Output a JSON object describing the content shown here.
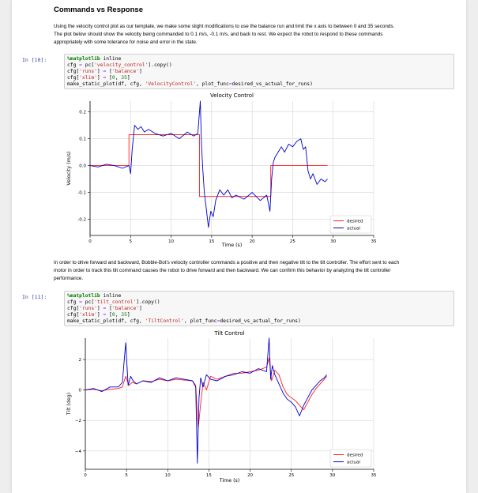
{
  "section1": {
    "heading": "Commands vs Response",
    "para_lines": [
      "Using the velocity control plot as our template, we make some slight modifications to use the balance run and limit the x axis to between 0 and 35 seconds.",
      "The plot below should show the velocity being commanded to 0.1 m/s, -0.1 m/s, and back to rest. We expect the robot to respond to these commands",
      "appropriately with some tolerance for noise and error in the state."
    ]
  },
  "cell1": {
    "prompt": "In [10]:",
    "lines": [
      [
        {
          "t": "%matplotlib",
          "c": "kw"
        },
        {
          "t": " inline",
          "c": ""
        }
      ],
      [
        {
          "t": "cfg ",
          "c": ""
        },
        {
          "t": "=",
          "c": "op"
        },
        {
          "t": " pc[",
          "c": ""
        },
        {
          "t": "'velocity_control'",
          "c": "str"
        },
        {
          "t": "].copy()",
          "c": ""
        }
      ],
      [
        {
          "t": "cfg[",
          "c": ""
        },
        {
          "t": "'runs'",
          "c": "str"
        },
        {
          "t": "] ",
          "c": ""
        },
        {
          "t": "=",
          "c": "op"
        },
        {
          "t": " [",
          "c": ""
        },
        {
          "t": "'balance'",
          "c": "str"
        },
        {
          "t": "]",
          "c": ""
        }
      ],
      [
        {
          "t": "cfg[",
          "c": ""
        },
        {
          "t": "'xlim'",
          "c": "str"
        },
        {
          "t": "] ",
          "c": ""
        },
        {
          "t": "=",
          "c": "op"
        },
        {
          "t": " [",
          "c": ""
        },
        {
          "t": "0",
          "c": "num"
        },
        {
          "t": ", ",
          "c": ""
        },
        {
          "t": "35",
          "c": "num"
        },
        {
          "t": "]",
          "c": ""
        }
      ],
      [
        {
          "t": "make_static_plot(df, cfg, ",
          "c": ""
        },
        {
          "t": "'VelocityControl'",
          "c": "str"
        },
        {
          "t": ", plot_func",
          "c": ""
        },
        {
          "t": "=",
          "c": "op"
        },
        {
          "t": "desired_vs_actual_for_runs)",
          "c": ""
        }
      ]
    ]
  },
  "section2": {
    "para_lines": [
      "In order to drive forward and backward, Bobble-Bot's velocity controller commands a positive and then negative tilt to the tilt controller. The effort sent to each",
      "motor in order to track this tilt command causes the robot to drive forward and then backward. We can confirm this behavior by analyzing the tilt controller",
      "performance."
    ]
  },
  "cell2": {
    "prompt": "In [11]:",
    "lines": [
      [
        {
          "t": "%matplotlib",
          "c": "kw"
        },
        {
          "t": " inline",
          "c": ""
        }
      ],
      [
        {
          "t": "cfg ",
          "c": ""
        },
        {
          "t": "=",
          "c": "op"
        },
        {
          "t": " pc[",
          "c": ""
        },
        {
          "t": "'tilt_control'",
          "c": "str"
        },
        {
          "t": "].copy()",
          "c": ""
        }
      ],
      [
        {
          "t": "cfg[",
          "c": ""
        },
        {
          "t": "'runs'",
          "c": "str"
        },
        {
          "t": "] ",
          "c": ""
        },
        {
          "t": "=",
          "c": "op"
        },
        {
          "t": " [",
          "c": ""
        },
        {
          "t": "'balance'",
          "c": "str"
        },
        {
          "t": "]",
          "c": ""
        }
      ],
      [
        {
          "t": "cfg[",
          "c": ""
        },
        {
          "t": "'xlim'",
          "c": "str"
        },
        {
          "t": "] ",
          "c": ""
        },
        {
          "t": "=",
          "c": "op"
        },
        {
          "t": " [",
          "c": ""
        },
        {
          "t": "0",
          "c": "num"
        },
        {
          "t": ", ",
          "c": ""
        },
        {
          "t": "35",
          "c": "num"
        },
        {
          "t": "]",
          "c": ""
        }
      ],
      [
        {
          "t": "make_static_plot(df, cfg, ",
          "c": ""
        },
        {
          "t": "'TiltControl'",
          "c": "str"
        },
        {
          "t": ", plot_func",
          "c": ""
        },
        {
          "t": "=",
          "c": "op"
        },
        {
          "t": "desired_vs_actual_for_runs)",
          "c": ""
        }
      ]
    ]
  },
  "colors": {
    "desired": "#ff2020",
    "actual": "#0000cc",
    "prompt": "#303f9f"
  },
  "chart_data": [
    {
      "type": "line",
      "title": "Velocity Control",
      "xlabel": "Time (s)",
      "ylabel": "Velocity (m/s)",
      "xlim": [
        0,
        35
      ],
      "ylim": [
        -0.26,
        0.24
      ],
      "xticks": [
        0,
        5,
        10,
        15,
        20,
        25,
        30,
        35
      ],
      "yticks": [
        -0.2,
        -0.1,
        0.0,
        0.1,
        0.2
      ],
      "ytick_labels": [
        "-0.2",
        "-0.1",
        "0.0",
        "0.1",
        "0.2"
      ],
      "grid": true,
      "legend_position": "lower-right",
      "series": [
        {
          "name": "desired",
          "x": [
            0,
            4.8,
            4.8,
            13.5,
            13.5,
            22.3,
            22.3,
            29.3
          ],
          "y": [
            0,
            0,
            0.115,
            0.115,
            -0.115,
            -0.115,
            0,
            0
          ]
        },
        {
          "name": "actual",
          "x": [
            0,
            1,
            2,
            3,
            4,
            4.8,
            5.0,
            5.2,
            5.5,
            5.9,
            6.3,
            6.7,
            7.2,
            8,
            9,
            10,
            11,
            12,
            12.8,
            13.3,
            13.6,
            13.75,
            13.9,
            14.1,
            14.3,
            14.6,
            14.9,
            15.2,
            15.5,
            16,
            16.5,
            17,
            17.5,
            18,
            19,
            20,
            21,
            21.8,
            22.2,
            22.4,
            22.6,
            22.8,
            23.2,
            23.6,
            24,
            24.5,
            25,
            25.5,
            26,
            26.3,
            26.6,
            26.9,
            27.2,
            27.5,
            28,
            28.5,
            29,
            29.3
          ],
          "y": [
            0,
            -0.005,
            0.005,
            0,
            -0.01,
            0.0,
            -0.03,
            0.06,
            0.15,
            0.135,
            0.145,
            0.125,
            0.135,
            0.12,
            0.11,
            0.12,
            0.1,
            0.125,
            0.11,
            0.12,
            0.24,
            0.08,
            -0.01,
            -0.1,
            -0.15,
            -0.23,
            -0.17,
            -0.19,
            -0.13,
            -0.09,
            -0.11,
            -0.09,
            -0.12,
            -0.11,
            -0.125,
            -0.1,
            -0.13,
            -0.11,
            -0.17,
            -0.05,
            0.01,
            0.03,
            0.05,
            0.07,
            0.05,
            0.08,
            0.07,
            0.09,
            0.1,
            0.06,
            0.07,
            -0.02,
            -0.05,
            -0.03,
            -0.07,
            -0.05,
            -0.06,
            -0.05
          ]
        }
      ]
    },
    {
      "type": "line",
      "title": "Tilt Control",
      "xlabel": "Time (s)",
      "ylabel": "Tilt (deg)",
      "xlim": [
        0,
        35
      ],
      "ylim": [
        -5.2,
        3.4
      ],
      "xticks": [
        0,
        5,
        10,
        15,
        20,
        25,
        30,
        35
      ],
      "yticks": [
        -4,
        -2,
        0,
        2
      ],
      "ytick_labels": [
        "−4",
        "−2",
        "0",
        "2"
      ],
      "grid": true,
      "legend_position": "lower-right",
      "series": [
        {
          "name": "desired",
          "x": [
            0,
            1,
            2,
            3,
            4,
            4.5,
            4.9,
            5.3,
            5.7,
            6.2,
            7,
            8,
            9,
            10,
            11,
            12,
            13,
            13.4,
            13.7,
            14.0,
            14.3,
            14.7,
            15.2,
            16,
            17,
            18,
            19,
            20,
            21,
            22,
            22.3,
            22.6,
            23,
            23.5,
            24,
            24.5,
            25,
            25.5,
            26,
            26.5,
            27,
            27.5,
            28,
            28.5,
            29,
            29.3
          ],
          "y": [
            0,
            0.05,
            -0.05,
            0.05,
            0.1,
            0.2,
            0.9,
            0.3,
            0.5,
            0.4,
            0.6,
            0.55,
            0.7,
            0.6,
            0.7,
            0.65,
            0.6,
            0.3,
            -2.5,
            -0.9,
            0.5,
            0.0,
            0.9,
            0.7,
            0.9,
            1.1,
            1.1,
            1.2,
            1.3,
            1.5,
            2.1,
            0.6,
            1.3,
            1.0,
            0.2,
            -0.3,
            -0.5,
            -0.7,
            -1.0,
            -1.3,
            -0.8,
            -0.3,
            0.1,
            0.4,
            0.7,
            0.9
          ]
        },
        {
          "name": "actual",
          "x": [
            0,
            1,
            2,
            3,
            4,
            4.5,
            4.9,
            5.2,
            5.5,
            5.8,
            6.2,
            7,
            8,
            9,
            10,
            11,
            12,
            13,
            13.4,
            13.6,
            13.8,
            14.0,
            14.3,
            14.7,
            15.2,
            16,
            17,
            18,
            19,
            20,
            21,
            22,
            22.3,
            22.5,
            22.7,
            23,
            23.5,
            24,
            24.5,
            25,
            25.5,
            26,
            26.5,
            27,
            27.5,
            28,
            28.5,
            29,
            29.3
          ],
          "y": [
            0,
            0.1,
            -0.1,
            0.2,
            0.2,
            0.5,
            3.1,
            0.3,
            0.9,
            0.6,
            0.4,
            0.6,
            0.5,
            0.8,
            0.6,
            0.8,
            0.7,
            0.6,
            0.2,
            -4.8,
            -0.5,
            0.8,
            0.2,
            1.0,
            0.7,
            0.6,
            0.9,
            1.0,
            1.2,
            1.1,
            1.4,
            1.2,
            3.4,
            0.7,
            1.6,
            1.0,
            0.4,
            -0.2,
            -0.6,
            -0.8,
            -1.1,
            -1.7,
            -1.0,
            -0.5,
            0.0,
            0.3,
            0.6,
            0.8,
            1.0
          ]
        }
      ]
    }
  ]
}
